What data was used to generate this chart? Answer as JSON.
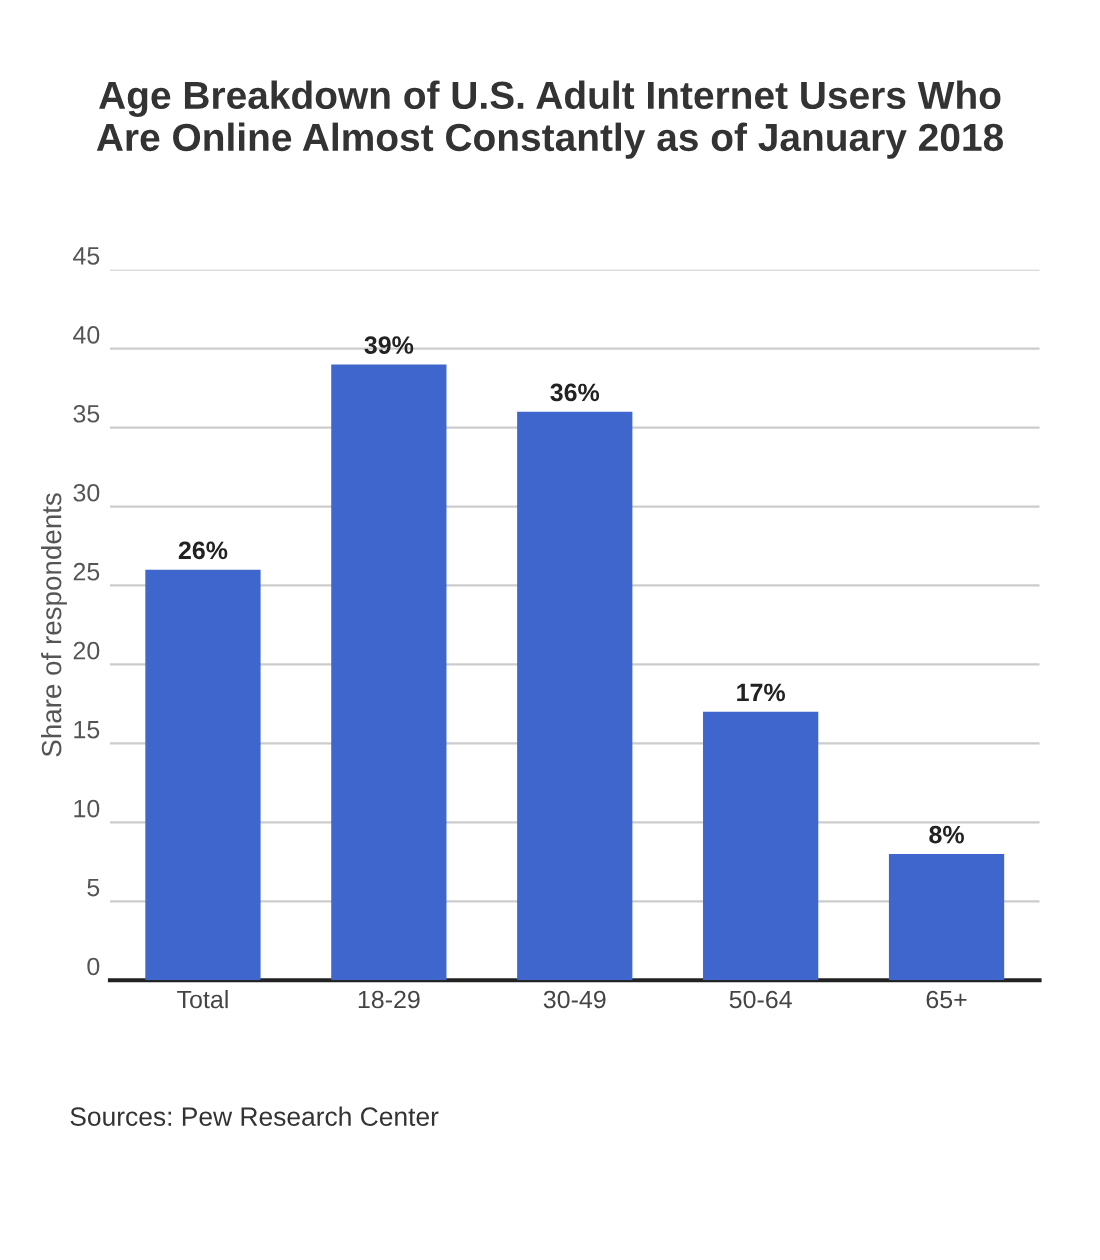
{
  "chart_data": {
    "type": "bar",
    "title": "Age Breakdown of U.S. Adult Internet Users Who\nAre Online Almost Constantly as of January 2018",
    "ylabel": "Share of respondents",
    "categories": [
      "Total",
      "18-29",
      "30-49",
      "50-64",
      "65+"
    ],
    "values": [
      26,
      39,
      36,
      17,
      8
    ],
    "value_labels": [
      "26%",
      "39%",
      "36%",
      "17%",
      "8%"
    ],
    "color": "#3f66cc",
    "ylim": [
      0,
      45
    ],
    "yticks": [
      0,
      5,
      10,
      15,
      20,
      25,
      30,
      35,
      40,
      45
    ],
    "grid": "y",
    "legend": false,
    "annotations": [
      "Sources: Pew Research Center"
    ]
  }
}
